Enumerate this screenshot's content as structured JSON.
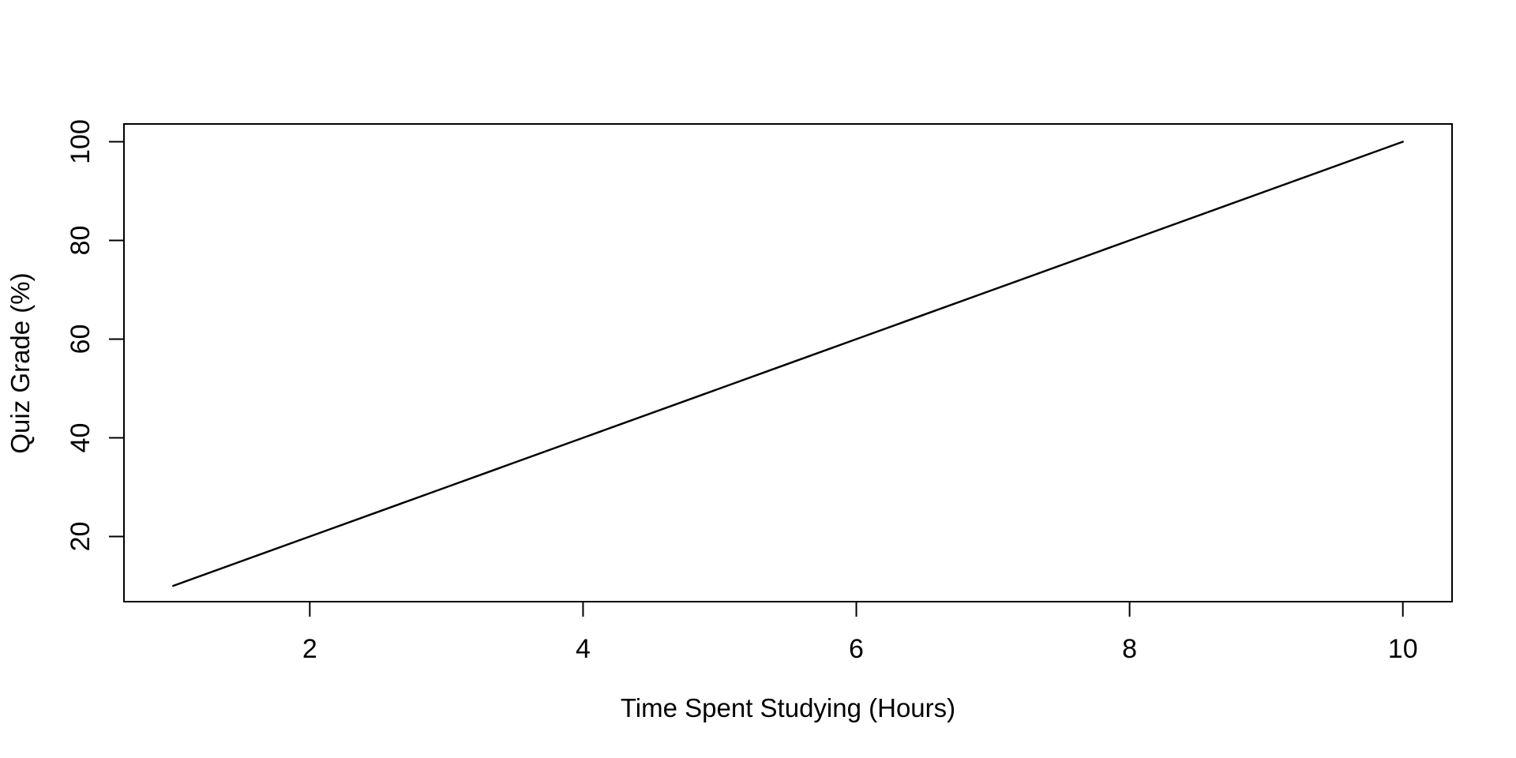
{
  "chart_data": {
    "type": "line",
    "title": "",
    "xlabel": "Time Spent Studying (Hours)",
    "ylabel": "Quiz Grade (%)",
    "x": [
      1,
      2,
      3,
      4,
      5,
      6,
      7,
      8,
      9,
      10
    ],
    "y": [
      10,
      20,
      30,
      40,
      50,
      60,
      70,
      80,
      90,
      100
    ],
    "xlim": [
      0.64,
      10.36
    ],
    "ylim": [
      6.8,
      103.6
    ],
    "x_ticks": [
      2,
      4,
      6,
      8,
      10
    ],
    "x_tick_labels": [
      "2",
      "4",
      "6",
      "8",
      "10"
    ],
    "y_ticks": [
      20,
      40,
      60,
      80,
      100
    ],
    "y_tick_labels": [
      "20",
      "40",
      "60",
      "80",
      "100"
    ],
    "grid": false,
    "legend": null,
    "line_color": "#000000",
    "axis_color": "#000000",
    "background": "#ffffff"
  }
}
